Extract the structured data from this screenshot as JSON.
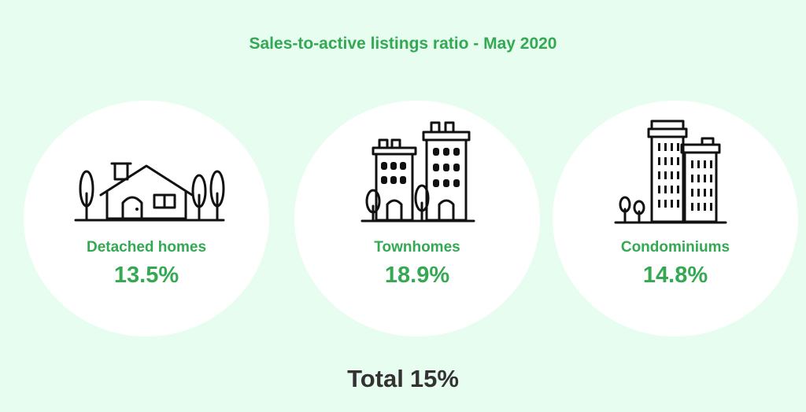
{
  "title": "Sales-to-active listings ratio - May 2020",
  "categories": [
    {
      "label": "Detached homes",
      "value": "13.5%",
      "icon": "house-icon"
    },
    {
      "label": "Townhomes",
      "value": "18.9%",
      "icon": "townhouse-buildings-icon"
    },
    {
      "label": "Condominiums",
      "value": "14.8%",
      "icon": "condo-towers-icon"
    }
  ],
  "total": {
    "label": "Total",
    "value": "15%"
  },
  "colors": {
    "accent": "#34a853",
    "background": "#e6fdf0",
    "circle": "#ffffff",
    "total_text": "#333333"
  }
}
